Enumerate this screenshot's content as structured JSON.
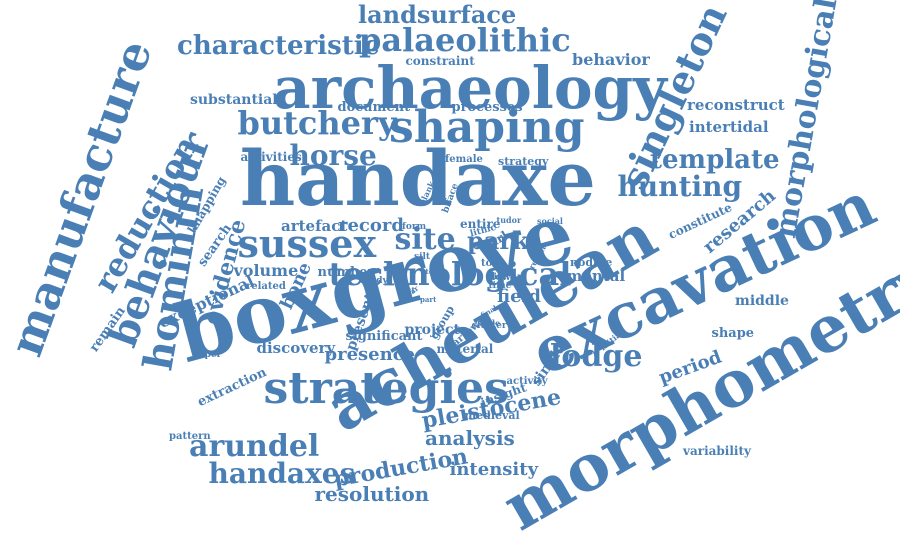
{
  "color": "#4a7fb5",
  "words": [
    {
      "text": "landsurface",
      "size": 24,
      "rot": 0
    },
    {
      "text": "characteristic",
      "size": 26,
      "rot": 0
    },
    {
      "text": "palaeolithic",
      "size": 32,
      "rot": 0
    },
    {
      "text": "constraint",
      "size": 12,
      "rot": 0
    },
    {
      "text": "behavior",
      "size": 16,
      "rot": 0
    },
    {
      "text": "archaeology",
      "size": 58,
      "rot": 0
    },
    {
      "text": "substantial",
      "size": 14,
      "rot": 0
    },
    {
      "text": "document",
      "size": 13,
      "rot": 0
    },
    {
      "text": "processes",
      "size": 13,
      "rot": 0
    },
    {
      "text": "reconstruct",
      "size": 15,
      "rot": 0
    },
    {
      "text": "intertidal",
      "size": 15,
      "rot": 0
    },
    {
      "text": "butchery",
      "size": 32,
      "rot": 0
    },
    {
      "text": "shaping",
      "size": 44,
      "rot": 0
    },
    {
      "text": "singleton",
      "size": 38,
      "rot": -65
    },
    {
      "text": "morphological",
      "size": 30,
      "rot": -80
    },
    {
      "text": "manufacture",
      "size": 46,
      "rot": -70
    },
    {
      "text": "reduction",
      "size": 32,
      "rot": -60
    },
    {
      "text": "behaviour",
      "size": 40,
      "rot": -70
    },
    {
      "text": "hominin",
      "size": 40,
      "rot": -80
    },
    {
      "text": "knapping",
      "size": 12,
      "rot": -60
    },
    {
      "text": "activities",
      "size": 12,
      "rot": 0
    },
    {
      "text": "horse",
      "size": 28,
      "rot": 0
    },
    {
      "text": "female",
      "size": 10,
      "rot": 0
    },
    {
      "text": "strategy",
      "size": 11,
      "rot": 0
    },
    {
      "text": "template",
      "size": 26,
      "rot": 0
    },
    {
      "text": "handaxe",
      "size": 76,
      "rot": 0
    },
    {
      "text": "hunting",
      "size": 28,
      "rot": 0
    },
    {
      "text": "blank",
      "size": 8,
      "rot": -65
    },
    {
      "text": "biface",
      "size": 9,
      "rot": -70
    },
    {
      "text": "research",
      "size": 18,
      "rot": -40
    },
    {
      "text": "constitute",
      "size": 12,
      "rot": -25
    },
    {
      "text": "artefact",
      "size": 15,
      "rot": 0
    },
    {
      "text": "record",
      "size": 18,
      "rot": 0
    },
    {
      "text": "form",
      "size": 9,
      "rot": 0
    },
    {
      "text": "earl",
      "size": 12,
      "rot": -30
    },
    {
      "text": "entire",
      "size": 12,
      "rot": 0
    },
    {
      "text": "tudor",
      "size": 8,
      "rot": 0
    },
    {
      "text": "social",
      "size": 8,
      "rot": 0
    },
    {
      "text": "lithic",
      "size": 9,
      "rot": -15
    },
    {
      "text": "sussex",
      "size": 38,
      "rot": 0
    },
    {
      "text": "site",
      "size": 30,
      "rot": 0
    },
    {
      "text": "park",
      "size": 24,
      "rot": 0
    },
    {
      "text": "excavation",
      "size": 62,
      "rot": -25
    },
    {
      "text": "evidence",
      "size": 22,
      "rot": -75
    },
    {
      "text": "search",
      "size": 13,
      "rot": -55
    },
    {
      "text": "volume",
      "size": 16,
      "rot": 0
    },
    {
      "text": "bone",
      "size": 18,
      "rot": -65
    },
    {
      "text": "number",
      "size": 13,
      "rot": 0
    },
    {
      "text": "related",
      "size": 10,
      "rot": 0
    },
    {
      "text": "silt",
      "size": 9,
      "rot": 0
    },
    {
      "text": "tool",
      "size": 10,
      "rot": 0
    },
    {
      "text": "lower",
      "size": 10,
      "rot": 0
    },
    {
      "text": "flint",
      "size": 8,
      "rot": 0
    },
    {
      "text": "time",
      "size": 9,
      "rot": 0
    },
    {
      "text": "result",
      "size": 8,
      "rot": -60
    },
    {
      "text": "nodule",
      "size": 11,
      "rot": 0
    },
    {
      "text": "mental",
      "size": 15,
      "rot": 0
    },
    {
      "text": "boxgrove",
      "size": 80,
      "rot": -15
    },
    {
      "text": "acheulean",
      "size": 64,
      "rot": -30
    },
    {
      "text": "morphometry",
      "size": 64,
      "rot": -30
    },
    {
      "text": "lost",
      "size": 8,
      "rot": 0
    },
    {
      "text": "test",
      "size": 7,
      "rot": 0
    },
    {
      "text": "study",
      "size": 9,
      "rot": 0
    },
    {
      "text": "clear",
      "size": 7,
      "rot": -40
    },
    {
      "text": "part",
      "size": 7,
      "rot": 0
    },
    {
      "text": "final",
      "size": 7,
      "rot": -30
    },
    {
      "text": "field",
      "size": 18,
      "rot": 0
    },
    {
      "text": "middle",
      "size": 14,
      "rot": 0
    },
    {
      "text": "exceptional",
      "size": 16,
      "rot": -25
    },
    {
      "text": "present",
      "size": 14,
      "rot": -70
    },
    {
      "text": "group",
      "size": 11,
      "rot": -60
    },
    {
      "text": "scale",
      "size": 8,
      "rot": 0
    },
    {
      "text": "initial",
      "size": 8,
      "rot": -40
    },
    {
      "text": "remain",
      "size": 13,
      "rot": -55
    },
    {
      "text": "significant",
      "size": 13,
      "rot": 0
    },
    {
      "text": "project",
      "size": 14,
      "rot": 0
    },
    {
      "text": "cluster",
      "size": 9,
      "rot": 0
    },
    {
      "text": "shape",
      "size": 13,
      "rot": 0
    },
    {
      "text": "discovery",
      "size": 15,
      "rot": 0
    },
    {
      "text": "marrow",
      "size": 10,
      "rot": -40
    },
    {
      "text": "material",
      "size": 12,
      "rot": 0
    },
    {
      "text": "paper",
      "size": 9,
      "rot": 0
    },
    {
      "text": "presence",
      "size": 18,
      "rot": 0
    },
    {
      "text": "lodge",
      "size": 30,
      "rot": 0
    },
    {
      "text": "single",
      "size": 14,
      "rot": -55
    },
    {
      "text": "period",
      "size": 18,
      "rot": -20
    },
    {
      "text": "extraction",
      "size": 13,
      "rot": -25
    },
    {
      "text": "strategies",
      "size": 44,
      "rot": 0
    },
    {
      "text": "activity",
      "size": 10,
      "rot": 0
    },
    {
      "text": "insight",
      "size": 12,
      "rot": -20
    },
    {
      "text": "pattern",
      "size": 10,
      "rot": 0
    },
    {
      "text": "pleistocene",
      "size": 22,
      "rot": -10
    },
    {
      "text": "medieval",
      "size": 11,
      "rot": 0
    },
    {
      "text": "analysis",
      "size": 20,
      "rot": 0
    },
    {
      "text": "arundel",
      "size": 30,
      "rot": 0
    },
    {
      "text": "handaxes",
      "size": 28,
      "rot": 0
    },
    {
      "text": "production",
      "size": 22,
      "rot": -10
    },
    {
      "text": "intensity",
      "size": 18,
      "rot": 0
    },
    {
      "text": "variability",
      "size": 12,
      "rot": 0
    },
    {
      "text": "resolution",
      "size": 20,
      "rot": 0
    },
    {
      "text": "technological",
      "size": 32,
      "rot": 0
    }
  ]
}
